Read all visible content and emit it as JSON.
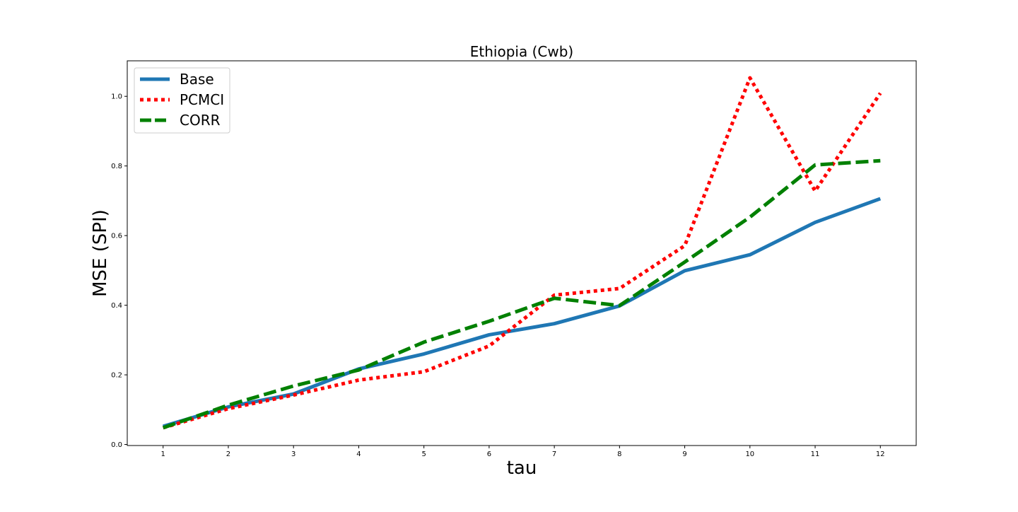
{
  "chart_data": {
    "type": "line",
    "title": "Ethiopia (Cwb)",
    "xlabel": "tau",
    "ylabel": "MSE (SPI)",
    "x": [
      1,
      2,
      3,
      4,
      5,
      6,
      7,
      8,
      9,
      10,
      11,
      12
    ],
    "xlim": [
      0.45,
      12.55
    ],
    "ylim": [
      -0.003,
      1.102
    ],
    "xticks": [
      1,
      2,
      3,
      4,
      5,
      6,
      7,
      8,
      9,
      10,
      11,
      12
    ],
    "yticks": [
      0.0,
      0.2,
      0.4,
      0.6,
      0.8,
      1.0
    ],
    "grid": false,
    "legend_position": "upper-left",
    "series": [
      {
        "name": "Base",
        "color": "#1f77b4",
        "dash": "solid",
        "values": [
          0.052,
          0.108,
          0.145,
          0.217,
          0.26,
          0.315,
          0.347,
          0.398,
          0.499,
          0.545,
          0.638,
          0.706
        ]
      },
      {
        "name": "PCMCI",
        "color": "#ff0000",
        "dash": "dotted",
        "values": [
          0.048,
          0.103,
          0.142,
          0.185,
          0.209,
          0.283,
          0.429,
          0.448,
          0.571,
          1.053,
          0.728,
          1.009
        ]
      },
      {
        "name": "CORR",
        "color": "#008000",
        "dash": "dashed",
        "values": [
          0.048,
          0.113,
          0.168,
          0.214,
          0.294,
          0.354,
          0.42,
          0.399,
          0.524,
          0.653,
          0.803,
          0.815
        ]
      }
    ]
  }
}
